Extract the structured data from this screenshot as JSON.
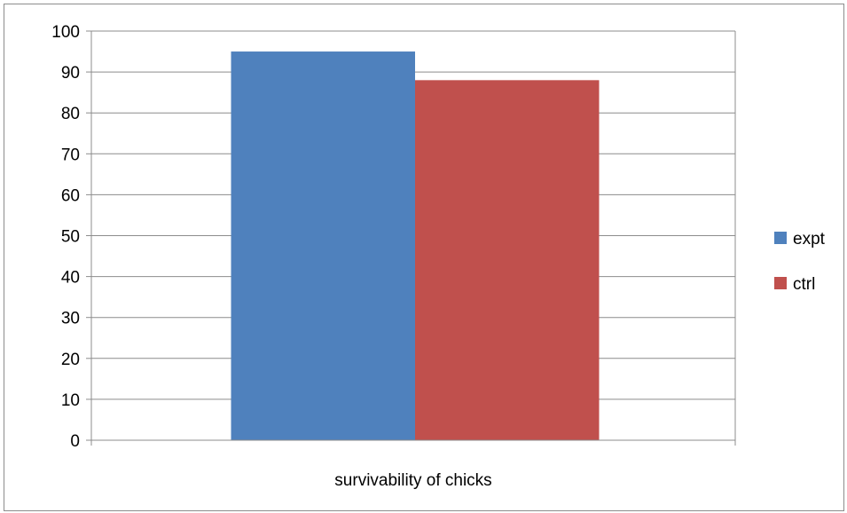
{
  "chart_data": {
    "type": "bar",
    "categories": [
      "survivability of chicks"
    ],
    "series": [
      {
        "name": "expt",
        "values": [
          95
        ],
        "color": "#4F81BD"
      },
      {
        "name": "ctrl",
        "values": [
          88
        ],
        "color": "#C0504D"
      }
    ],
    "title": "",
    "xlabel": "",
    "ylabel": "",
    "ylim": [
      0,
      100
    ],
    "yticks": [
      0,
      10,
      20,
      30,
      40,
      50,
      60,
      70,
      80,
      90,
      100
    ],
    "grid": true,
    "legend": "right"
  }
}
